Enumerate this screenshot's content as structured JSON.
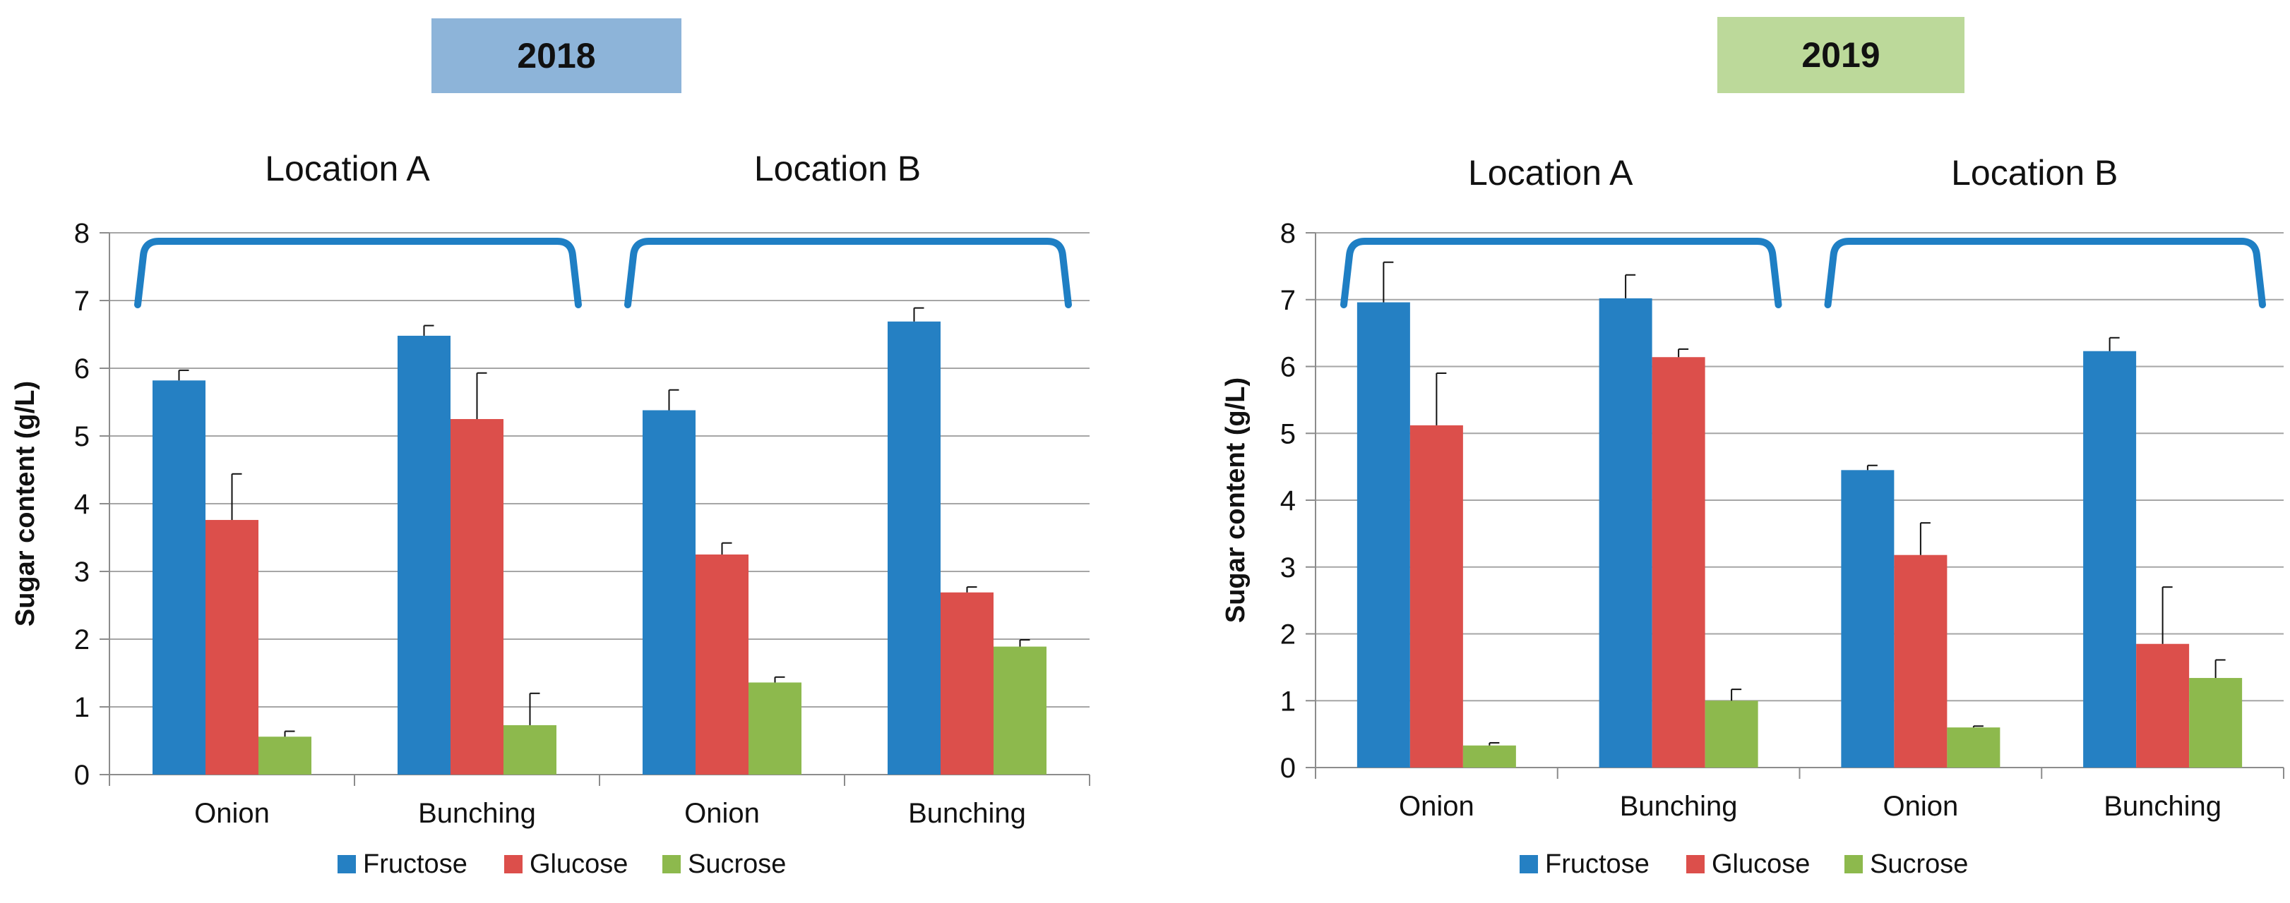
{
  "chart_data": [
    {
      "type": "bar",
      "title": "2018",
      "title_color": "#8db4d9",
      "group_labels": [
        "Location A",
        "Location B"
      ],
      "categories": [
        "Onion",
        "Bunching",
        "Onion",
        "Bunching"
      ],
      "ylabel": "Sugar content (g/L)",
      "ylim": [
        0,
        8
      ],
      "yticks": [
        "0",
        "1",
        "2",
        "3",
        "4",
        "5",
        "6",
        "7",
        "8"
      ],
      "grid": true,
      "legend_position": "bottom",
      "series": [
        {
          "name": "Fructose",
          "color": "#2580c3",
          "values": [
            5.82,
            6.48,
            5.38,
            6.69
          ],
          "errors": [
            0.15,
            0.15,
            0.3,
            0.2
          ]
        },
        {
          "name": "Glucose",
          "color": "#dc4f4b",
          "values": [
            3.76,
            5.25,
            3.25,
            2.69
          ],
          "errors": [
            0.68,
            0.68,
            0.17,
            0.08
          ]
        },
        {
          "name": "Sucrose",
          "color": "#8db94d",
          "values": [
            0.56,
            0.73,
            1.36,
            1.89
          ],
          "errors": [
            0.08,
            0.47,
            0.08,
            0.1
          ]
        }
      ]
    },
    {
      "type": "bar",
      "title": "2019",
      "title_color": "#bcd99a",
      "group_labels": [
        "Location A",
        "Location B"
      ],
      "categories": [
        "Onion",
        "Bunching",
        "Onion",
        "Bunching"
      ],
      "ylabel": "Sugar content (g/L)",
      "ylim": [
        0,
        8
      ],
      "yticks": [
        "0",
        "1",
        "2",
        "3",
        "4",
        "5",
        "6",
        "7",
        "8"
      ],
      "grid": true,
      "legend_position": "bottom",
      "series": [
        {
          "name": "Fructose",
          "color": "#2580c3",
          "values": [
            6.96,
            7.02,
            4.45,
            6.23
          ],
          "errors": [
            0.6,
            0.35,
            0.07,
            0.2
          ]
        },
        {
          "name": "Glucose",
          "color": "#dc4f4b",
          "values": [
            5.12,
            6.14,
            3.18,
            1.85
          ],
          "errors": [
            0.78,
            0.12,
            0.48,
            0.85
          ]
        },
        {
          "name": "Sucrose",
          "color": "#8db94d",
          "values": [
            0.33,
            1.0,
            0.6,
            1.34
          ],
          "errors": [
            0.04,
            0.17,
            0.02,
            0.27
          ]
        }
      ]
    }
  ]
}
